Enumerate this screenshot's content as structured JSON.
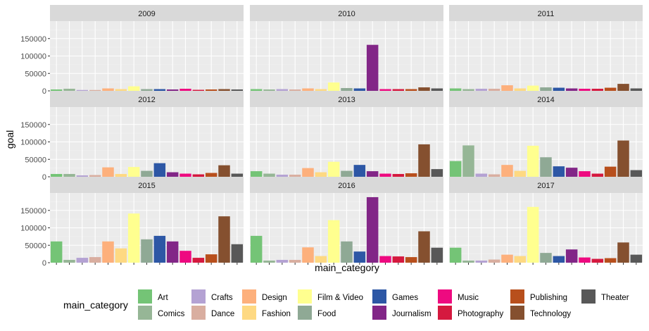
{
  "chart_data": {
    "type": "bar",
    "facet_by": "year",
    "facets": [
      "2009",
      "2010",
      "2011",
      "2012",
      "2013",
      "2014",
      "2015",
      "2016",
      "2017"
    ],
    "categories": [
      "Art",
      "Comics",
      "Crafts",
      "Dance",
      "Design",
      "Fashion",
      "Film & Video",
      "Food",
      "Games",
      "Journalism",
      "Music",
      "Photography",
      "Publishing",
      "Technology",
      "Theater"
    ],
    "colors": [
      "#74c476",
      "#96b696",
      "#b4a2d3",
      "#d9aea0",
      "#fdb07c",
      "#fed982",
      "#ffff8f",
      "#8fa995",
      "#2d57a5",
      "#822687",
      "#ee0a80",
      "#d5193f",
      "#b84f1c",
      "#85502f",
      "#585858"
    ],
    "values": {
      "2009": [
        4000,
        6000,
        2500,
        2500,
        7000,
        5000,
        13000,
        5000,
        5000,
        4000,
        6000,
        3000,
        4000,
        5000,
        4000
      ],
      "2010": [
        5000,
        4000,
        5000,
        4000,
        7000,
        5000,
        24000,
        8000,
        7000,
        132000,
        5000,
        5000,
        5000,
        10000,
        7000
      ],
      "2011": [
        7000,
        5000,
        6000,
        6000,
        16000,
        7000,
        15000,
        10000,
        9000,
        7000,
        6000,
        6000,
        9000,
        20000,
        7000
      ],
      "2012": [
        8000,
        8000,
        4000,
        5000,
        27000,
        8000,
        28000,
        17000,
        39000,
        13000,
        9000,
        7000,
        11000,
        33000,
        9000
      ],
      "2013": [
        16000,
        9000,
        6000,
        6000,
        25000,
        13000,
        43000,
        17000,
        34000,
        16000,
        9000,
        8000,
        10000,
        93000,
        22000
      ],
      "2014": [
        45000,
        90000,
        9000,
        7000,
        34000,
        17000,
        89000,
        56000,
        30000,
        26000,
        16000,
        9000,
        29000,
        104000,
        19000
      ],
      "2015": [
        61000,
        8000,
        14000,
        16000,
        61000,
        41000,
        141000,
        67000,
        77000,
        61000,
        34000,
        14000,
        24000,
        133000,
        53000
      ],
      "2016": [
        77000,
        6000,
        8000,
        8000,
        44000,
        19000,
        122000,
        61000,
        32000,
        188000,
        19000,
        18000,
        16000,
        90000,
        43000
      ],
      "2017": [
        43000,
        6000,
        6000,
        9000,
        23000,
        19000,
        160000,
        28000,
        19000,
        38000,
        15000,
        11000,
        13000,
        58000,
        23000
      ]
    },
    "xlabel": "main_category",
    "ylabel": "goal",
    "yticks": [
      0,
      50000,
      100000,
      150000
    ],
    "ytick_labels": [
      "0",
      "50000",
      "100000",
      "150000"
    ],
    "ylim": [
      0,
      200000
    ],
    "legend_title": "main_category",
    "legend_position": "bottom",
    "grid": true,
    "panel_background": "#ebebeb",
    "strip_background": "#d9d9d9"
  }
}
